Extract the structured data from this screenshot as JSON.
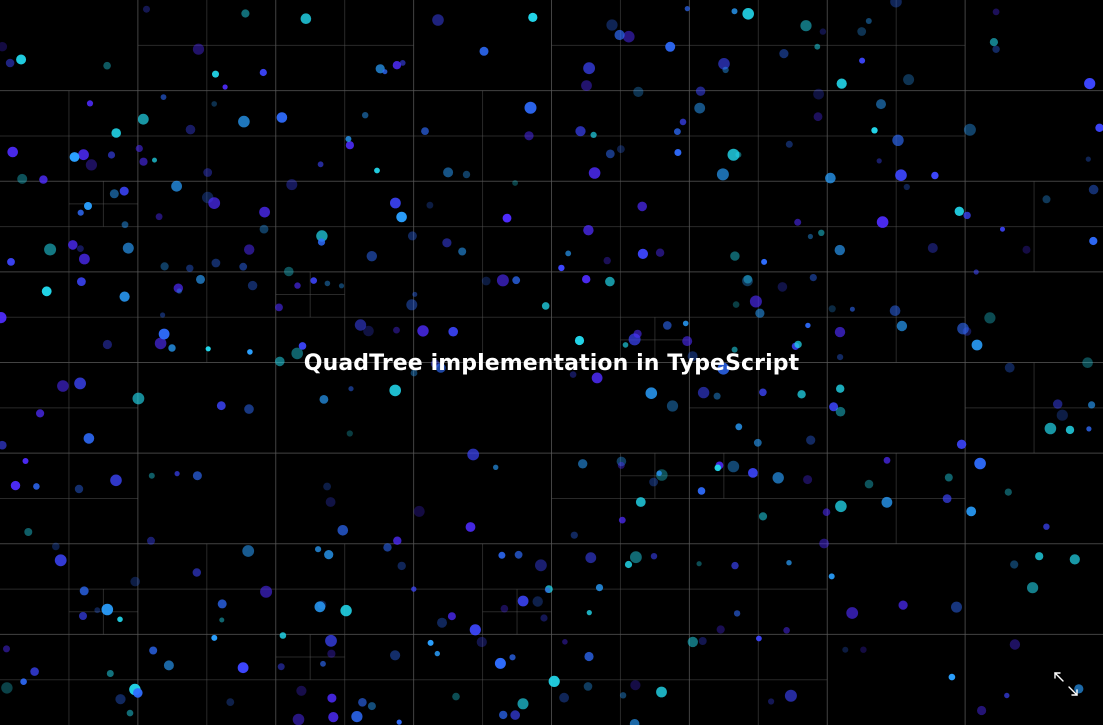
{
  "title": "QuadTree implementation in TypeScript",
  "controls": {
    "fullscreen_icon": "expand-arrows-icon"
  },
  "colors": {
    "background": "#000000",
    "grid_line": "#5a5a5a",
    "title_text": "#ffffff",
    "point_palette": [
      "#4f2cff",
      "#3d46ff",
      "#2f6dff",
      "#2aa0ff",
      "#22d6ea"
    ]
  }
}
